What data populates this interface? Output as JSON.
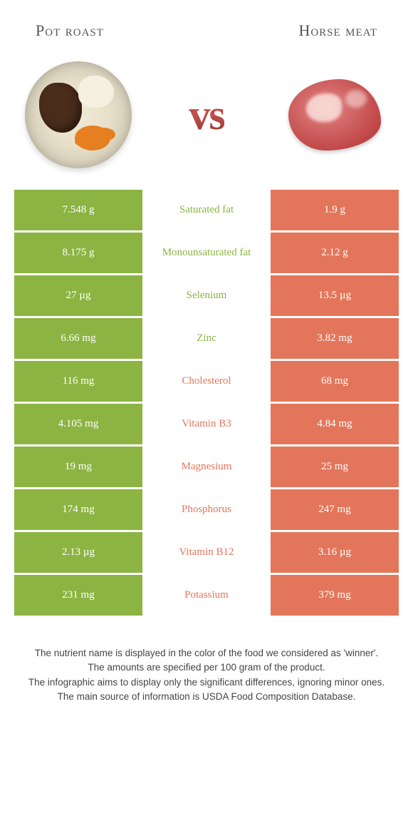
{
  "titles": {
    "left": "Pot roast",
    "right": "Horse meat"
  },
  "vs": "vs",
  "colors": {
    "left": "#8cb442",
    "right": "#e3765a",
    "mid_left": "#8cb442",
    "mid_right": "#e3765a"
  },
  "rows": [
    {
      "left": "7.548 g",
      "label": "Saturated fat",
      "right": "1.9 g",
      "winner": "left"
    },
    {
      "left": "8.175 g",
      "label": "Monounsaturated fat",
      "right": "2.12 g",
      "winner": "left"
    },
    {
      "left": "27 µg",
      "label": "Selenium",
      "right": "13.5 µg",
      "winner": "left"
    },
    {
      "left": "6.66 mg",
      "label": "Zinc",
      "right": "3.82 mg",
      "winner": "left"
    },
    {
      "left": "116 mg",
      "label": "Cholesterol",
      "right": "68 mg",
      "winner": "right"
    },
    {
      "left": "4.105 mg",
      "label": "Vitamin B3",
      "right": "4.84 mg",
      "winner": "right"
    },
    {
      "left": "19 mg",
      "label": "Magnesium",
      "right": "25 mg",
      "winner": "right"
    },
    {
      "left": "174 mg",
      "label": "Phosphorus",
      "right": "247 mg",
      "winner": "right"
    },
    {
      "left": "2.13 µg",
      "label": "Vitamin B12",
      "right": "3.16 µg",
      "winner": "right"
    },
    {
      "left": "231 mg",
      "label": "Potassium",
      "right": "379 mg",
      "winner": "right"
    }
  ],
  "footer": [
    "The nutrient name is displayed in the color of the food we considered as 'winner'.",
    "The amounts are specified per 100 gram of the product.",
    "The infographic aims to display only the significant differences, ignoring minor ones.",
    "The main source of information is USDA Food Composition Database."
  ]
}
